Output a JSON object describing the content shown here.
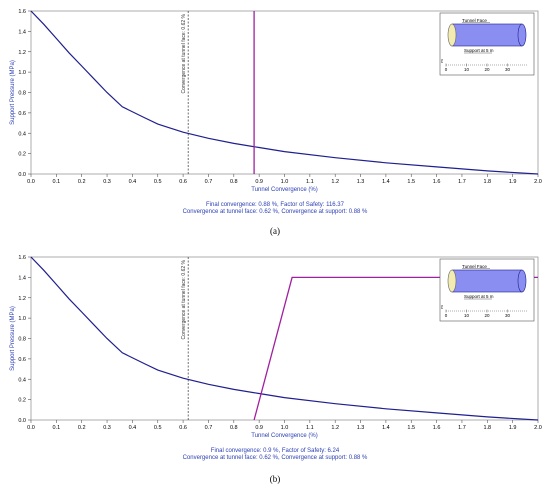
{
  "chart_data": [
    {
      "type": "line",
      "panel_label": "(a)",
      "xlabel": "Tunnel Convergence (%)",
      "ylabel": "Support Pressure (MPa)",
      "xlim": [
        0,
        2.0
      ],
      "ylim": [
        0,
        1.6
      ],
      "x_ticks": [
        "0.0",
        "0.1",
        "0.2",
        "0.3",
        "0.4",
        "0.5",
        "0.6",
        "0.7",
        "0.8",
        "0.9",
        "1.0",
        "1.1",
        "1.2",
        "1.3",
        "1.4",
        "1.5",
        "1.6",
        "1.7",
        "1.8",
        "1.9",
        "2.0"
      ],
      "y_ticks": [
        "0.0",
        "0.2",
        "0.4",
        "0.6",
        "0.8",
        "1.0",
        "1.2",
        "1.4",
        "1.6"
      ],
      "grid": false,
      "series": [
        {
          "role": "ground-reaction-curve",
          "color": "#1f1f8f",
          "points": [
            [
              0,
              1.6
            ],
            [
              0.05,
              1.47
            ],
            [
              0.1,
              1.33
            ],
            [
              0.15,
              1.19
            ],
            [
              0.2,
              1.06
            ],
            [
              0.25,
              0.93
            ],
            [
              0.3,
              0.8
            ],
            [
              0.36,
              0.66
            ],
            [
              0.45,
              0.55
            ],
            [
              0.5,
              0.49
            ],
            [
              0.6,
              0.41
            ],
            [
              0.7,
              0.35
            ],
            [
              0.8,
              0.3
            ],
            [
              0.9,
              0.26
            ],
            [
              1.0,
              0.22
            ],
            [
              1.2,
              0.16
            ],
            [
              1.4,
              0.11
            ],
            [
              1.6,
              0.07
            ],
            [
              1.8,
              0.03
            ],
            [
              2.0,
              0.0
            ]
          ]
        },
        {
          "role": "support-reaction-curve",
          "color": "#a020a0",
          "points": [
            [
              0.88,
              0.0
            ],
            [
              0.88,
              1.6
            ]
          ]
        }
      ],
      "marker": {
        "x": 0.62,
        "label": "Convergence at tunnel face: 0.62 %"
      },
      "inset": {
        "tunnel_face": "Tunnel Face",
        "support": "Support at 5 m",
        "ticks": [
          "0",
          "10",
          "20",
          "30"
        ],
        "axis_label": "m"
      },
      "summary_line1": "Final convergence: 0.88 %,   Factor of Safety:  116.37",
      "summary_line2": "Convergence at tunnel face: 0.62 %,     Convergence at support: 0.88 %"
    },
    {
      "type": "line",
      "panel_label": "(b)",
      "xlabel": "Tunnel Convergence (%)",
      "ylabel": "Support Pressure (MPa)",
      "xlim": [
        0,
        2.0
      ],
      "ylim": [
        0,
        1.6
      ],
      "x_ticks": [
        "0.0",
        "0.1",
        "0.2",
        "0.3",
        "0.4",
        "0.5",
        "0.6",
        "0.7",
        "0.8",
        "0.9",
        "1.0",
        "1.1",
        "1.2",
        "1.3",
        "1.4",
        "1.5",
        "1.6",
        "1.7",
        "1.8",
        "1.9",
        "2.0"
      ],
      "y_ticks": [
        "0.0",
        "0.2",
        "0.4",
        "0.6",
        "0.8",
        "1.0",
        "1.2",
        "1.4",
        "1.6"
      ],
      "grid": false,
      "series": [
        {
          "role": "ground-reaction-curve",
          "color": "#1f1f8f",
          "points": [
            [
              0,
              1.6
            ],
            [
              0.05,
              1.47
            ],
            [
              0.1,
              1.33
            ],
            [
              0.15,
              1.19
            ],
            [
              0.2,
              1.06
            ],
            [
              0.25,
              0.93
            ],
            [
              0.3,
              0.8
            ],
            [
              0.36,
              0.66
            ],
            [
              0.45,
              0.55
            ],
            [
              0.5,
              0.49
            ],
            [
              0.6,
              0.41
            ],
            [
              0.7,
              0.35
            ],
            [
              0.8,
              0.3
            ],
            [
              0.9,
              0.26
            ],
            [
              1.0,
              0.22
            ],
            [
              1.2,
              0.16
            ],
            [
              1.4,
              0.11
            ],
            [
              1.6,
              0.07
            ],
            [
              1.8,
              0.03
            ],
            [
              2.0,
              0.0
            ]
          ]
        },
        {
          "role": "support-reaction-curve",
          "color": "#a020a0",
          "points": [
            [
              0.88,
              0.0
            ],
            [
              1.03,
              1.4
            ],
            [
              2.0,
              1.4
            ]
          ]
        }
      ],
      "marker": {
        "x": 0.62,
        "label": "Convergence at tunnel face: 0.62 %"
      },
      "inset": {
        "tunnel_face": "Tunnel Face",
        "support": "Support at 5 m",
        "ticks": [
          "0",
          "10",
          "20",
          "30"
        ],
        "axis_label": "m"
      },
      "summary_line1": "Final convergence: 0.9 %,   Factor of Safety:  6.24",
      "summary_line2": "Convergence at tunnel face: 0.62 %,     Convergence at support: 0.88 %"
    }
  ]
}
